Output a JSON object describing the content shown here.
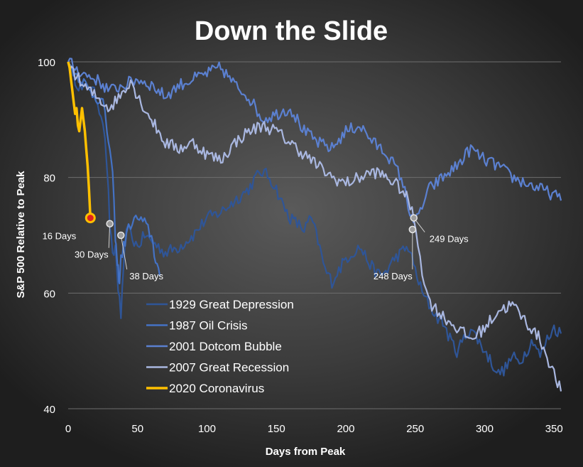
{
  "chart_data": {
    "type": "line",
    "title": "Down the Slide",
    "xlabel": "Days from Peak",
    "ylabel": "S&P 500 Relative to Peak",
    "xlim": [
      0,
      355
    ],
    "ylim": [
      40,
      100
    ],
    "xticks": [
      "0",
      "50",
      "100",
      "150",
      "200",
      "250",
      "300",
      "350"
    ],
    "xtick_values": [
      0,
      50,
      100,
      150,
      200,
      250,
      300,
      350
    ],
    "yticks": [
      "40",
      "60",
      "80",
      "100"
    ],
    "ytick_values": [
      40,
      60,
      80,
      100
    ],
    "grid": "horizontal",
    "legend_position": "lower-left",
    "series": [
      {
        "name": "1929 Great Depression",
        "color": "#2f5597",
        "points": [
          [
            0,
            100
          ],
          [
            5,
            97
          ],
          [
            10,
            95
          ],
          [
            15,
            96
          ],
          [
            20,
            94
          ],
          [
            25,
            90
          ],
          [
            28,
            82
          ],
          [
            30,
            72
          ],
          [
            32,
            66
          ],
          [
            34,
            68
          ],
          [
            36,
            61
          ],
          [
            38,
            56
          ],
          [
            40,
            64
          ],
          [
            42,
            72
          ],
          [
            45,
            70
          ],
          [
            50,
            68
          ],
          [
            55,
            70
          ],
          [
            60,
            69
          ],
          [
            65,
            68
          ],
          [
            70,
            67
          ],
          [
            80,
            68
          ],
          [
            90,
            70
          ],
          [
            100,
            73
          ],
          [
            110,
            74
          ],
          [
            120,
            76
          ],
          [
            130,
            78
          ],
          [
            135,
            80
          ],
          [
            140,
            81
          ],
          [
            145,
            80
          ],
          [
            150,
            78
          ],
          [
            155,
            75
          ],
          [
            160,
            73
          ],
          [
            165,
            72
          ],
          [
            170,
            71
          ],
          [
            175,
            73
          ],
          [
            180,
            69
          ],
          [
            185,
            64
          ],
          [
            190,
            62
          ],
          [
            195,
            64
          ],
          [
            200,
            66
          ],
          [
            205,
            67
          ],
          [
            210,
            68
          ],
          [
            215,
            66
          ],
          [
            220,
            64
          ],
          [
            225,
            63
          ],
          [
            230,
            64
          ],
          [
            235,
            66
          ],
          [
            240,
            67
          ],
          [
            245,
            68
          ],
          [
            250,
            64
          ],
          [
            255,
            60
          ],
          [
            260,
            58
          ],
          [
            265,
            56
          ],
          [
            270,
            55
          ],
          [
            275,
            52
          ],
          [
            280,
            50
          ],
          [
            285,
            52
          ],
          [
            290,
            54
          ],
          [
            295,
            52
          ],
          [
            300,
            50
          ],
          [
            305,
            48
          ],
          [
            310,
            46
          ],
          [
            315,
            47
          ],
          [
            320,
            49
          ],
          [
            325,
            48
          ],
          [
            330,
            50
          ],
          [
            335,
            52
          ],
          [
            340,
            49
          ],
          [
            345,
            52
          ],
          [
            350,
            54
          ],
          [
            355,
            53
          ]
        ]
      },
      {
        "name": "1987 Oil Crisis",
        "color": "#4472c4",
        "points": [
          [
            0,
            100
          ],
          [
            5,
            98
          ],
          [
            10,
            97
          ],
          [
            15,
            95
          ],
          [
            20,
            94
          ],
          [
            25,
            93
          ],
          [
            28,
            88
          ],
          [
            30,
            85
          ],
          [
            32,
            80
          ],
          [
            34,
            70
          ],
          [
            35,
            66
          ],
          [
            36,
            64
          ],
          [
            37,
            62
          ],
          [
            38,
            66
          ],
          [
            40,
            68
          ],
          [
            42,
            70
          ],
          [
            45,
            72
          ],
          [
            50,
            73
          ],
          [
            55,
            72
          ],
          [
            60,
            70
          ],
          [
            62,
            67
          ],
          [
            64,
            65
          ],
          [
            66,
            63
          ]
        ]
      },
      {
        "name": "2001 Dotcom Bubble",
        "color": "#5b80d0",
        "points": [
          [
            0,
            100
          ],
          [
            10,
            98
          ],
          [
            20,
            97
          ],
          [
            30,
            95
          ],
          [
            40,
            96
          ],
          [
            50,
            97
          ],
          [
            60,
            96
          ],
          [
            70,
            94
          ],
          [
            80,
            96
          ],
          [
            90,
            97
          ],
          [
            100,
            98
          ],
          [
            110,
            99
          ],
          [
            120,
            96
          ],
          [
            130,
            94
          ],
          [
            140,
            90
          ],
          [
            150,
            91
          ],
          [
            160,
            92
          ],
          [
            170,
            88
          ],
          [
            180,
            86
          ],
          [
            190,
            85
          ],
          [
            200,
            88
          ],
          [
            210,
            89
          ],
          [
            220,
            86
          ],
          [
            230,
            84
          ],
          [
            240,
            80
          ],
          [
            245,
            75
          ],
          [
            250,
            72
          ],
          [
            255,
            75
          ],
          [
            260,
            78
          ],
          [
            270,
            80
          ],
          [
            280,
            82
          ],
          [
            290,
            85
          ],
          [
            300,
            83
          ],
          [
            310,
            82
          ],
          [
            320,
            80
          ],
          [
            330,
            79
          ],
          [
            340,
            78
          ],
          [
            350,
            77
          ],
          [
            355,
            76
          ]
        ]
      },
      {
        "name": "2007 Great Recession",
        "color": "#a9b7e0",
        "points": [
          [
            0,
            100
          ],
          [
            10,
            96
          ],
          [
            20,
            94
          ],
          [
            30,
            92
          ],
          [
            40,
            95
          ],
          [
            45,
            97
          ],
          [
            50,
            94
          ],
          [
            55,
            92
          ],
          [
            60,
            90
          ],
          [
            65,
            88
          ],
          [
            70,
            86
          ],
          [
            80,
            85
          ],
          [
            90,
            86
          ],
          [
            100,
            84
          ],
          [
            110,
            83
          ],
          [
            120,
            86
          ],
          [
            130,
            88
          ],
          [
            140,
            89
          ],
          [
            150,
            88
          ],
          [
            160,
            86
          ],
          [
            170,
            84
          ],
          [
            180,
            82
          ],
          [
            190,
            80
          ],
          [
            200,
            79
          ],
          [
            210,
            80
          ],
          [
            220,
            81
          ],
          [
            230,
            80
          ],
          [
            240,
            78
          ],
          [
            245,
            76
          ],
          [
            249,
            73
          ],
          [
            252,
            69
          ],
          [
            255,
            64
          ],
          [
            258,
            60
          ],
          [
            262,
            58
          ],
          [
            270,
            56
          ],
          [
            280,
            54
          ],
          [
            290,
            52
          ],
          [
            300,
            54
          ],
          [
            310,
            57
          ],
          [
            320,
            58
          ],
          [
            330,
            55
          ],
          [
            340,
            52
          ],
          [
            345,
            49
          ],
          [
            350,
            46
          ],
          [
            355,
            43
          ]
        ]
      },
      {
        "name": "2020 Coronavirus",
        "color": "#ffc000",
        "points": [
          [
            0,
            100
          ],
          [
            1,
            99
          ],
          [
            2,
            97
          ],
          [
            3,
            95
          ],
          [
            4,
            93
          ],
          [
            5,
            91
          ],
          [
            6,
            92
          ],
          [
            7,
            89
          ],
          [
            8,
            88
          ],
          [
            9,
            90
          ],
          [
            10,
            92
          ],
          [
            11,
            90
          ],
          [
            12,
            88
          ],
          [
            13,
            85
          ],
          [
            14,
            82
          ],
          [
            15,
            78
          ],
          [
            16,
            73
          ]
        ]
      }
    ],
    "annotations": [
      {
        "text": "16 Days",
        "x": 16,
        "y": 73
      },
      {
        "text": "30 Days",
        "x": 30,
        "y": 72
      },
      {
        "text": "38 Days",
        "x": 38,
        "y": 70
      },
      {
        "text": "248 Days",
        "x": 248,
        "y": 71
      },
      {
        "text": "249 Days",
        "x": 249,
        "y": 73
      }
    ]
  }
}
